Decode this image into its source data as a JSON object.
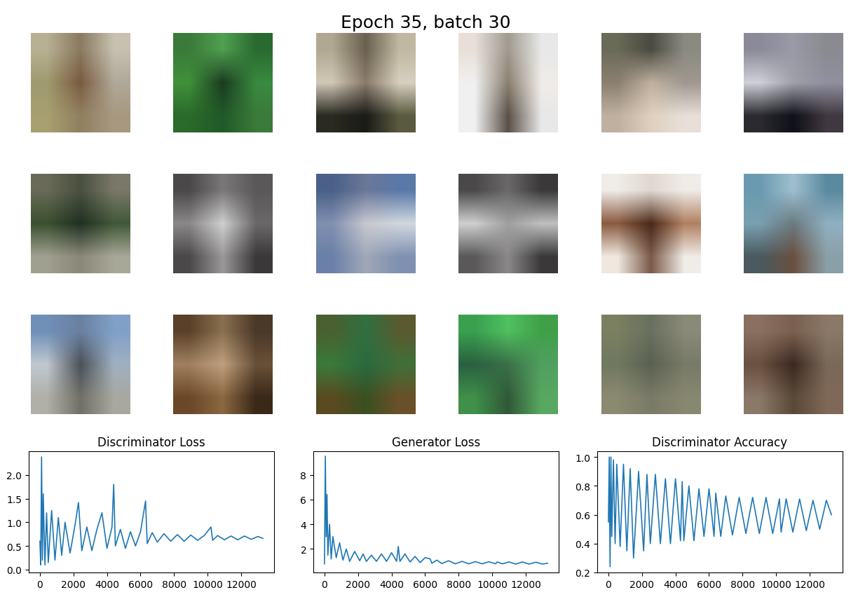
{
  "title": "Epoch 35, batch 30",
  "samples": [
    [
      [
        "#b8b092",
        "#8a7a60",
        "#c8c0b0"
      ],
      [
        "#a09a70",
        "#7a5a40",
        "#b0a898"
      ],
      [
        "#a8a070",
        "#908060",
        "#a89880"
      ]
    ],
    [
      [
        "#3a7a3a",
        "#50a050",
        "#2a6a30"
      ],
      [
        "#40903a",
        "#1a3a20",
        "#3a8a40"
      ],
      [
        "#2a6a2a",
        "#205a28",
        "#3a7a3a"
      ]
    ],
    [
      [
        "#b0a890",
        "#6a6050",
        "#c0b8a0"
      ],
      [
        "#d0c8b8",
        "#8a7a6a",
        "#d8d0c0"
      ],
      [
        "#2a2a20",
        "#1a1a18",
        "#5a5a40"
      ]
    ],
    [
      [
        "#e8e0d8",
        "#a09a90",
        "#e8e8e8"
      ],
      [
        "#f0f0f0",
        "#8a8070",
        "#f0ece8"
      ],
      [
        "#f0f0f0",
        "#5a5048",
        "#e8e8e8"
      ]
    ],
    [
      [
        "#6a6a58",
        "#4a4a40",
        "#8a8a80"
      ],
      [
        "#8a8070",
        "#c0b0a0",
        "#a09890"
      ],
      [
        "#c0b0a0",
        "#e0d0c0",
        "#e8e0d8"
      ]
    ],
    [
      [
        "#8a8a98",
        "#9a9aa8",
        "#8a8a90"
      ],
      [
        "#d0d0d8",
        "#a0a0a8",
        "#9090a0"
      ],
      [
        "#2a2a30",
        "#101018",
        "#403840"
      ]
    ],
    [
      [
        "#6a6a58",
        "#4a5040",
        "#7a7868"
      ],
      [
        "#3a5030",
        "#203020",
        "#405838"
      ],
      [
        "#a0a090",
        "#8a8878",
        "#a8a898"
      ]
    ],
    [
      [
        "#4a4848",
        "#7a7878",
        "#5a5858"
      ],
      [
        "#8a8888",
        "#d0d0d0",
        "#6a6868"
      ],
      [
        "#4a4848",
        "#9a9898",
        "#3a3838"
      ]
    ],
    [
      [
        "#4a6088",
        "#6a7898",
        "#5a78a8"
      ],
      [
        "#8090b0",
        "#c8c8d0",
        "#d0d8e0"
      ],
      [
        "#6a80a8",
        "#a0a8b8",
        "#8090b0"
      ]
    ],
    [
      [
        "#4a4848",
        "#6a6868",
        "#3a3838"
      ],
      [
        "#d0d0d0",
        "#a0a0a0",
        "#c0c0c0"
      ],
      [
        "#5a5858",
        "#8a8888",
        "#3a3838"
      ]
    ],
    [
      [
        "#f0ece8",
        "#e0d8d0",
        "#f0ece8"
      ],
      [
        "#8a5a40",
        "#4a2818",
        "#b08060"
      ],
      [
        "#f0e8e0",
        "#7a5a48",
        "#f0ece8"
      ]
    ],
    [
      [
        "#6a9ab0",
        "#a0c0d0",
        "#5a8aa0"
      ],
      [
        "#7aa0b0",
        "#6a7a80",
        "#90b0c0"
      ],
      [
        "#4a5a60",
        "#6a5040",
        "#8aa0a8"
      ]
    ],
    [
      [
        "#7090b8",
        "#6a80a0",
        "#80a0c8"
      ],
      [
        "#c0c8d0",
        "#4a5058",
        "#a0b0c0"
      ],
      [
        "#b0b0a8",
        "#707068",
        "#a8a8a0"
      ]
    ],
    [
      [
        "#5a4028",
        "#8a7050",
        "#4a3828"
      ],
      [
        "#a08060",
        "#c0a080",
        "#6a5038"
      ],
      [
        "#6a4828",
        "#8a6840",
        "#3a2818"
      ]
    ],
    [
      [
        "#4a6030",
        "#307040",
        "#5a5a30"
      ],
      [
        "#3a7a3a",
        "#2a6a40",
        "#407038"
      ],
      [
        "#5a4a20",
        "#3a5020",
        "#6a5028"
      ]
    ],
    [
      [
        "#3aa050",
        "#50c060",
        "#40a048"
      ],
      [
        "#2a6040",
        "#3a7048",
        "#50a060"
      ],
      [
        "#40904a",
        "#305838",
        "#58a860"
      ]
    ],
    [
      [
        "#7a8060",
        "#6a7060",
        "#8a8a78"
      ],
      [
        "#707860",
        "#5a6050",
        "#787a68"
      ],
      [
        "#8a8a70",
        "#7a7a68",
        "#888870"
      ]
    ],
    [
      [
        "#8a7060",
        "#7a6050",
        "#8a7868"
      ],
      [
        "#6a5040",
        "#3a2820",
        "#7a6858"
      ],
      [
        "#8a7868",
        "#5a4838",
        "#806858"
      ]
    ]
  ],
  "chart_data": [
    {
      "type": "line",
      "title": "Discriminator Loss",
      "color": "#1f77b4",
      "x": [
        0,
        50,
        100,
        150,
        200,
        300,
        400,
        500,
        700,
        900,
        1100,
        1300,
        1500,
        1800,
        2100,
        2300,
        2500,
        2800,
        3100,
        3400,
        3700,
        4000,
        4300,
        4400,
        4500,
        4800,
        5100,
        5400,
        5700,
        6000,
        6300,
        6400,
        6700,
        7000,
        7400,
        7800,
        8200,
        8600,
        9000,
        9400,
        9800,
        10200,
        10300,
        10600,
        11000,
        11400,
        11800,
        12200,
        12600,
        13000,
        13300
      ],
      "values": [
        0.6,
        0.1,
        2.38,
        0.2,
        1.6,
        0.1,
        1.2,
        0.15,
        1.25,
        0.2,
        1.1,
        0.3,
        1.0,
        0.35,
        0.95,
        1.42,
        0.4,
        0.9,
        0.4,
        0.85,
        1.2,
        0.45,
        0.9,
        1.8,
        0.5,
        0.85,
        0.45,
        0.8,
        0.5,
        0.8,
        1.45,
        0.55,
        0.78,
        0.58,
        0.76,
        0.6,
        0.74,
        0.6,
        0.73,
        0.62,
        0.72,
        0.9,
        0.62,
        0.72,
        0.63,
        0.71,
        0.63,
        0.71,
        0.64,
        0.7,
        0.66
      ],
      "xlim": [
        -665,
        13965
      ],
      "xticks": [
        0,
        2000,
        4000,
        6000,
        8000,
        10000,
        12000
      ],
      "ylim": [
        -0.06,
        2.5
      ],
      "yticks": [
        {
          "value": 0,
          "label": "0.0"
        },
        {
          "value": 0.5,
          "label": "0.5"
        },
        {
          "value": 1,
          "label": "1.0"
        },
        {
          "value": 1.5,
          "label": "1.5"
        },
        {
          "value": 2,
          "label": "2.0"
        }
      ]
    },
    {
      "type": "line",
      "title": "Generator Loss",
      "color": "#1f77b4",
      "x": [
        0,
        50,
        100,
        150,
        200,
        300,
        400,
        500,
        700,
        900,
        1100,
        1300,
        1500,
        1800,
        2100,
        2300,
        2500,
        2800,
        3100,
        3400,
        3700,
        4000,
        4300,
        4400,
        4500,
        4800,
        5100,
        5400,
        5700,
        6000,
        6300,
        6400,
        6700,
        7000,
        7400,
        7800,
        8200,
        8600,
        9000,
        9400,
        9800,
        10200,
        10300,
        10600,
        11000,
        11400,
        11800,
        12200,
        12600,
        13000,
        13300
      ],
      "values": [
        0.8,
        9.5,
        3.0,
        6.4,
        1.5,
        4.0,
        1.2,
        3.0,
        1.3,
        2.5,
        1.1,
        2.0,
        1.0,
        1.8,
        1.05,
        1.6,
        1.0,
        1.5,
        1.0,
        1.6,
        1.0,
        1.7,
        1.0,
        2.2,
        1.0,
        1.6,
        0.95,
        1.4,
        0.9,
        1.3,
        1.2,
        0.85,
        1.1,
        0.82,
        1.05,
        0.8,
        1.0,
        0.8,
        0.98,
        0.8,
        0.97,
        0.8,
        0.95,
        0.8,
        0.95,
        0.78,
        0.95,
        0.78,
        0.93,
        0.78,
        0.85
      ],
      "xlim": [
        -665,
        13965
      ],
      "xticks": [
        0,
        2000,
        4000,
        6000,
        8000,
        10000,
        12000
      ],
      "ylim": [
        0.1,
        9.9
      ],
      "yticks": [
        2,
        4,
        6,
        8
      ]
    },
    {
      "type": "line",
      "title": "Discriminator Accuracy",
      "color": "#1f77b4",
      "x": [
        0,
        50,
        100,
        150,
        200,
        300,
        400,
        500,
        700,
        900,
        1100,
        1300,
        1500,
        1800,
        2100,
        2300,
        2500,
        2800,
        3100,
        3400,
        3700,
        4000,
        4300,
        4400,
        4500,
        4800,
        5100,
        5400,
        5700,
        6000,
        6300,
        6400,
        6700,
        7000,
        7400,
        7800,
        8200,
        8600,
        9000,
        9400,
        9800,
        10200,
        10300,
        10600,
        11000,
        11400,
        11800,
        12200,
        12600,
        13000,
        13300
      ],
      "values": [
        0.55,
        1.0,
        0.24,
        1.0,
        0.45,
        0.98,
        0.4,
        0.95,
        0.38,
        0.95,
        0.35,
        0.92,
        0.3,
        0.9,
        0.35,
        0.88,
        0.4,
        0.88,
        0.4,
        0.85,
        0.4,
        0.85,
        0.42,
        0.83,
        0.42,
        0.8,
        0.42,
        0.78,
        0.45,
        0.78,
        0.45,
        0.75,
        0.45,
        0.73,
        0.46,
        0.72,
        0.47,
        0.72,
        0.47,
        0.72,
        0.47,
        0.71,
        0.48,
        0.71,
        0.48,
        0.71,
        0.49,
        0.7,
        0.5,
        0.7,
        0.6
      ],
      "xlim": [
        -665,
        13965
      ],
      "xticks": [
        0,
        2000,
        4000,
        6000,
        8000,
        10000,
        12000
      ],
      "ylim": [
        0.2,
        1.04
      ],
      "yticks": [
        {
          "value": 0.2,
          "label": "0.2"
        },
        {
          "value": 0.4,
          "label": "0.4"
        },
        {
          "value": 0.6,
          "label": "0.6"
        },
        {
          "value": 0.8,
          "label": "0.8"
        },
        {
          "value": 1,
          "label": "1.0"
        }
      ]
    }
  ]
}
